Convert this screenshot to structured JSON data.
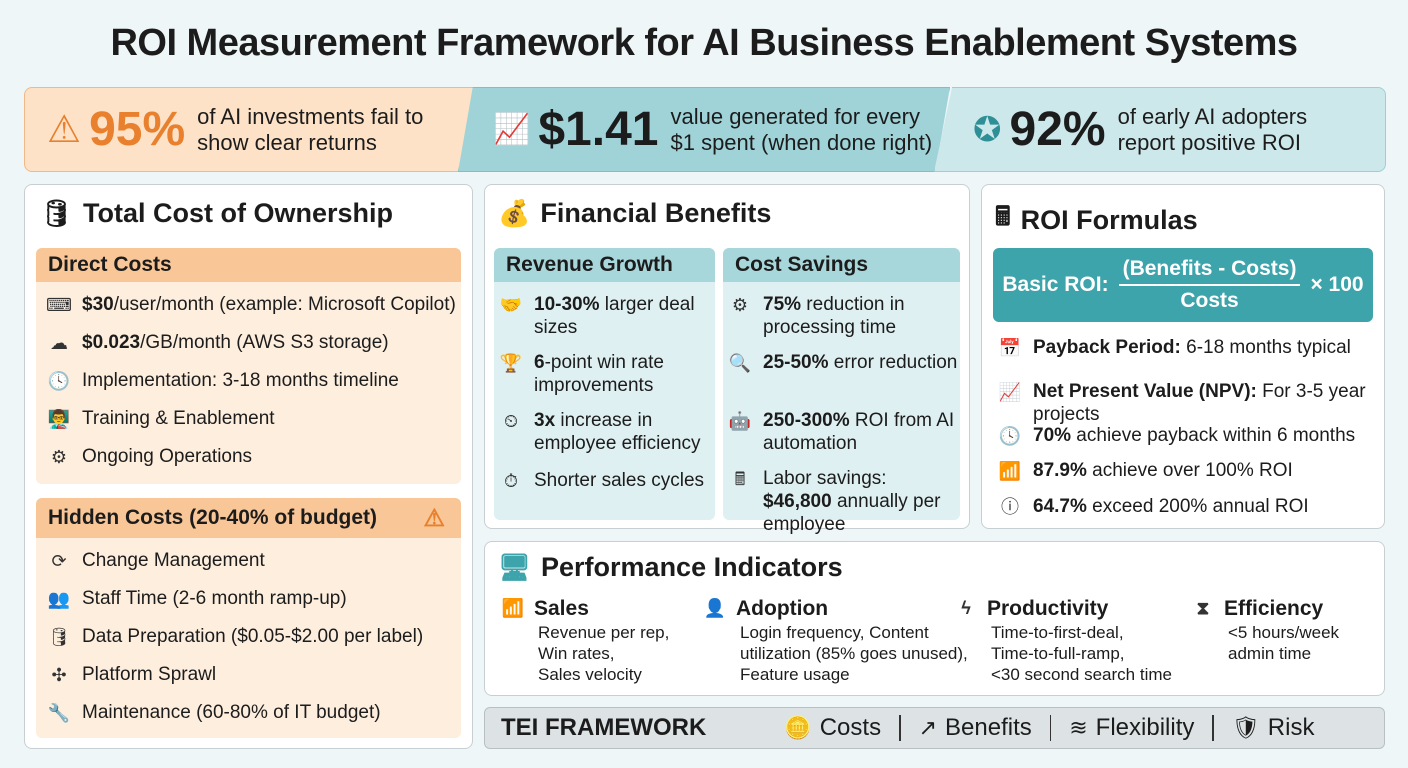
{
  "title": "ROI Measurement Framework for AI Business Enablement Systems",
  "banner": [
    {
      "icon": "warning-icon",
      "value": "95%",
      "text": "of AI investments fail to show clear returns",
      "color": "#e8802e"
    },
    {
      "icon": "growth-chart-icon",
      "value": "$1.41",
      "text": "value generated for every $1 spent (when done right)"
    },
    {
      "icon": "badge-check-icon",
      "value": "92%",
      "text": "of early AI adopters report positive ROI"
    }
  ],
  "tco": {
    "title": "Total Cost of Ownership",
    "direct_header": "Direct Costs",
    "direct": [
      {
        "icon": "code-window-icon",
        "bold": "$30",
        "text": "/user/month (example: Microsoft Copilot)"
      },
      {
        "icon": "cloud-icon",
        "bold": "$0.023",
        "text": "/GB/month (AWS S3 storage)"
      },
      {
        "icon": "clock-icon",
        "bold": "",
        "text": "Implementation: 3-18 months timeline"
      },
      {
        "icon": "presentation-icon",
        "bold": "",
        "text": "Training & Enablement"
      },
      {
        "icon": "gears-icon",
        "bold": "",
        "text": "Ongoing Operations"
      }
    ],
    "hidden_header": "Hidden Costs (20-40% of budget)",
    "hidden": [
      {
        "icon": "refresh-icon",
        "text": "Change Management"
      },
      {
        "icon": "team-icon",
        "text": "Staff Time (2-6 month ramp-up)"
      },
      {
        "icon": "database-icon",
        "text": "Data Preparation ($0.05-$2.00 per label)"
      },
      {
        "icon": "network-icon",
        "text": "Platform Sprawl"
      },
      {
        "icon": "wrench-icon",
        "text": "Maintenance (60-80% of IT budget)"
      }
    ]
  },
  "financial": {
    "title": "Financial Benefits",
    "revenue_header": "Revenue Growth",
    "revenue": [
      {
        "icon": "handshake-icon",
        "bold": "10-30%",
        "text": " larger deal sizes"
      },
      {
        "icon": "trophy-icon",
        "bold": "6",
        "text": "-point win rate improvements"
      },
      {
        "icon": "speedometer-icon",
        "bold": "3x",
        "text": " increase in employee efficiency"
      },
      {
        "icon": "stopwatch-icon",
        "bold": "",
        "text": "Shorter sales cycles"
      }
    ],
    "savings_header": "Cost Savings",
    "savings": [
      {
        "icon": "gear-network-icon",
        "bold": "75%",
        "text": " reduction in processing time"
      },
      {
        "icon": "magnifier-icon",
        "bold": "25-50%",
        "text": " error reduction"
      },
      {
        "icon": "robot-icon",
        "bold": "250-300%",
        "text": " ROI from AI automation"
      },
      {
        "icon": "calculator-icon",
        "bold": "$46,800",
        "text": "Labor savings: ",
        "tail": " annually per employee"
      }
    ]
  },
  "roi": {
    "title": "ROI Formulas",
    "formula_label": "Basic ROI:",
    "numerator": "(Benefits - Costs)",
    "denominator": "Costs",
    "multiplier": "× 100",
    "items": [
      {
        "icon": "calendar-icon",
        "bold": "Payback Period:",
        "text": " 6-18 months typical"
      },
      {
        "icon": "line-chart-icon",
        "bold": "Net Present Value (NPV):",
        "text": " For 3-5 year projects"
      },
      {
        "icon": "clock-icon",
        "bold": "70%",
        "text": " achieve payback within 6 months"
      },
      {
        "icon": "bar-chart-icon",
        "bold": "87.9%",
        "text": " achieve over 100% ROI"
      },
      {
        "icon": "alert-circle-icon",
        "bold": "64.7%",
        "text": " exceed 200% annual ROI"
      }
    ]
  },
  "performance": {
    "title": "Performance Indicators",
    "kpis": [
      {
        "icon": "bar-chart-icon",
        "title": "Sales",
        "lines": [
          "Revenue per rep,",
          "Win rates,",
          "Sales velocity"
        ]
      },
      {
        "icon": "user-icon",
        "title": "Adoption",
        "lines": [
          "Login frequency, Content",
          "utilization (85% goes unused),",
          "Feature usage"
        ]
      },
      {
        "icon": "lightning-icon",
        "title": "Productivity",
        "lines": [
          "Time-to-first-deal,",
          "Time-to-full-ramp,",
          "<30 second search time"
        ]
      },
      {
        "icon": "hourglass-icon",
        "title": "Efficiency",
        "lines": [
          "<5 hours/week",
          "admin time"
        ]
      }
    ]
  },
  "tei": {
    "label": "TEI FRAMEWORK",
    "items": [
      {
        "icon": "coins-icon",
        "label": "Costs"
      },
      {
        "icon": "trend-up-icon",
        "label": "Benefits"
      },
      {
        "icon": "spring-icon",
        "label": "Flexibility"
      },
      {
        "icon": "shield-icon",
        "label": "Risk"
      }
    ]
  },
  "colors": {
    "orange": "#e8802e",
    "orange_light": "#fde2c8",
    "teal": "#3ea4ab",
    "teal_light": "#9fd3d8",
    "background": "#eef6f8"
  }
}
